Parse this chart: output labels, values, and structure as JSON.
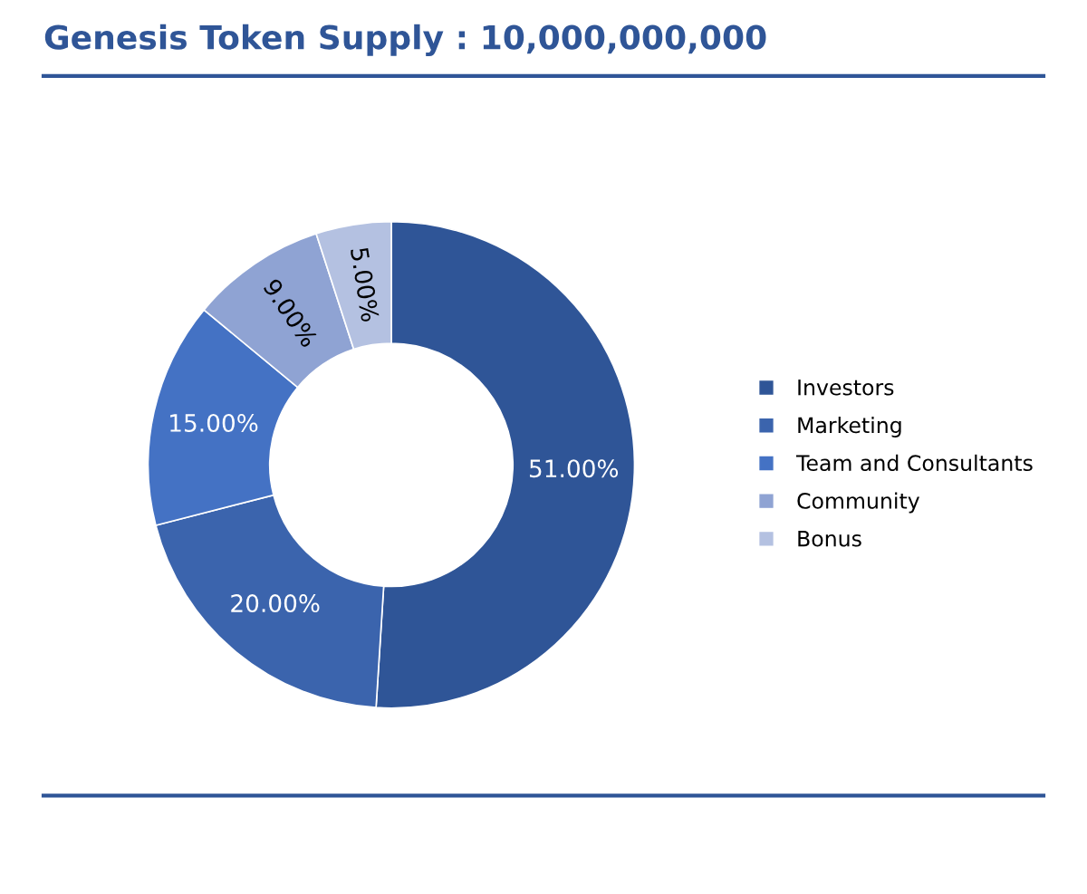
{
  "chart_data": {
    "type": "donut",
    "title": "Genesis Token Supply : 10,000,000,000",
    "categories": [
      "Investors",
      "Marketing",
      "Team and Consultants",
      "Community",
      "Bonus"
    ],
    "values": [
      51,
      20,
      15,
      9,
      5
    ],
    "colors": [
      "#2f5597",
      "#3b64ad",
      "#4472c4",
      "#8fa3d3",
      "#b4c1e1"
    ],
    "value_labels": [
      "51.00%",
      "20.00%",
      "15.00%",
      "9.00%",
      "5.00%"
    ],
    "legend": "right"
  }
}
